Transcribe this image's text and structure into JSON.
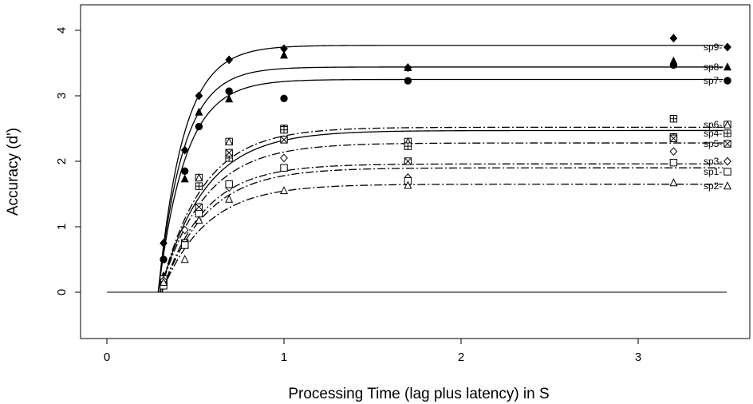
{
  "chart_data": {
    "type": "scatter",
    "title": "",
    "xlabel": "Processing Time (lag plus latency) in S",
    "ylabel": "Accuracy (d')",
    "xlim": [
      -0.15,
      3.6
    ],
    "ylim": [
      -0.68,
      4.35
    ],
    "xticks": [
      0,
      1,
      2,
      3
    ],
    "xtick_labels": [
      "0",
      "1",
      "2",
      "3"
    ],
    "yticks": [
      0,
      1,
      2,
      3,
      4
    ],
    "ytick_labels": [
      "0",
      "1",
      "2",
      "3",
      "4"
    ],
    "grid": false,
    "legend_position": "right",
    "baseline": {
      "y": 0,
      "x_start": 0,
      "x_end": 3.5
    },
    "series": [
      {
        "name": "sp9-",
        "marker": "diamond-filled",
        "line": "solid",
        "fit": {
          "asymptote": 3.77,
          "rate": 7.0,
          "intercept": 0.29
        },
        "points": [
          [
            0.32,
            0.75
          ],
          [
            0.44,
            2.17
          ],
          [
            0.52,
            3.0
          ],
          [
            0.69,
            3.55
          ],
          [
            1.0,
            3.72
          ],
          [
            1.7,
            3.43
          ],
          [
            3.2,
            3.88
          ]
        ]
      },
      {
        "name": "sp8-",
        "marker": "triangle-filled",
        "line": "solid",
        "fit": {
          "asymptote": 3.44,
          "rate": 7.0,
          "intercept": 0.29
        },
        "points": [
          [
            0.32,
            0.25
          ],
          [
            0.44,
            1.73
          ],
          [
            0.52,
            2.75
          ],
          [
            0.69,
            2.95
          ],
          [
            1.0,
            3.62
          ],
          [
            1.7,
            3.43
          ],
          [
            3.2,
            3.53
          ]
        ]
      },
      {
        "name": "sp7-",
        "marker": "circle-filled",
        "line": "solid",
        "fit": {
          "asymptote": 3.25,
          "rate": 6.5,
          "intercept": 0.29
        },
        "points": [
          [
            0.32,
            0.5
          ],
          [
            0.44,
            1.85
          ],
          [
            0.52,
            2.53
          ],
          [
            0.69,
            3.07
          ],
          [
            1.0,
            2.96
          ],
          [
            1.7,
            3.23
          ],
          [
            3.2,
            3.47
          ]
        ]
      },
      {
        "name": "sp6-",
        "marker": "square-triangle",
        "line": "dashdot",
        "fit": {
          "asymptote": 2.52,
          "rate": 4.2,
          "intercept": 0.3
        },
        "points": [
          [
            0.32,
            0.15
          ],
          [
            0.44,
            0.72
          ],
          [
            0.52,
            1.75
          ],
          [
            0.69,
            2.3
          ],
          [
            1.0,
            2.5
          ],
          [
            1.7,
            2.3
          ],
          [
            3.2,
            2.37
          ]
        ]
      },
      {
        "name": "sp4-",
        "marker": "square-plus",
        "line": "solid",
        "fit": {
          "asymptote": 2.47,
          "rate": 4.0,
          "intercept": 0.3
        },
        "points": [
          [
            0.32,
            0.2
          ],
          [
            0.44,
            0.75
          ],
          [
            0.52,
            1.62
          ],
          [
            0.69,
            2.05
          ],
          [
            1.0,
            2.48
          ],
          [
            1.7,
            2.23
          ],
          [
            3.2,
            2.65
          ]
        ]
      },
      {
        "name": "sp5-",
        "marker": "square-x",
        "line": "dashdot",
        "fit": {
          "asymptote": 2.28,
          "rate": 4.0,
          "intercept": 0.3
        },
        "points": [
          [
            0.32,
            0.15
          ],
          [
            0.44,
            0.75
          ],
          [
            0.52,
            1.3
          ],
          [
            0.69,
            2.13
          ],
          [
            1.0,
            2.33
          ],
          [
            1.7,
            2.0
          ],
          [
            3.2,
            2.35
          ]
        ]
      },
      {
        "name": "sp3-",
        "marker": "diamond-open",
        "line": "dashdot",
        "fit": {
          "asymptote": 1.96,
          "rate": 4.2,
          "intercept": 0.31
        },
        "points": [
          [
            0.32,
            0.18
          ],
          [
            0.44,
            0.95
          ],
          [
            0.52,
            1.25
          ],
          [
            0.69,
            1.6
          ],
          [
            1.0,
            2.05
          ],
          [
            1.7,
            1.75
          ],
          [
            3.2,
            2.15
          ]
        ]
      },
      {
        "name": "sp1-",
        "marker": "square-open",
        "line": "dashdot",
        "fit": {
          "asymptote": 1.9,
          "rate": 4.0,
          "intercept": 0.31
        },
        "points": [
          [
            0.32,
            0.1
          ],
          [
            0.44,
            0.72
          ],
          [
            0.52,
            1.2
          ],
          [
            0.69,
            1.65
          ],
          [
            1.0,
            1.9
          ],
          [
            1.7,
            1.7
          ],
          [
            3.2,
            1.98
          ]
        ]
      },
      {
        "name": "sp2-",
        "marker": "triangle-open",
        "line": "dashdot",
        "fit": {
          "asymptote": 1.65,
          "rate": 4.0,
          "intercept": 0.31
        },
        "points": [
          [
            0.32,
            0.15
          ],
          [
            0.44,
            0.5
          ],
          [
            0.52,
            1.1
          ],
          [
            0.69,
            1.42
          ],
          [
            1.0,
            1.55
          ],
          [
            1.7,
            1.63
          ],
          [
            3.2,
            1.67
          ]
        ]
      }
    ]
  }
}
